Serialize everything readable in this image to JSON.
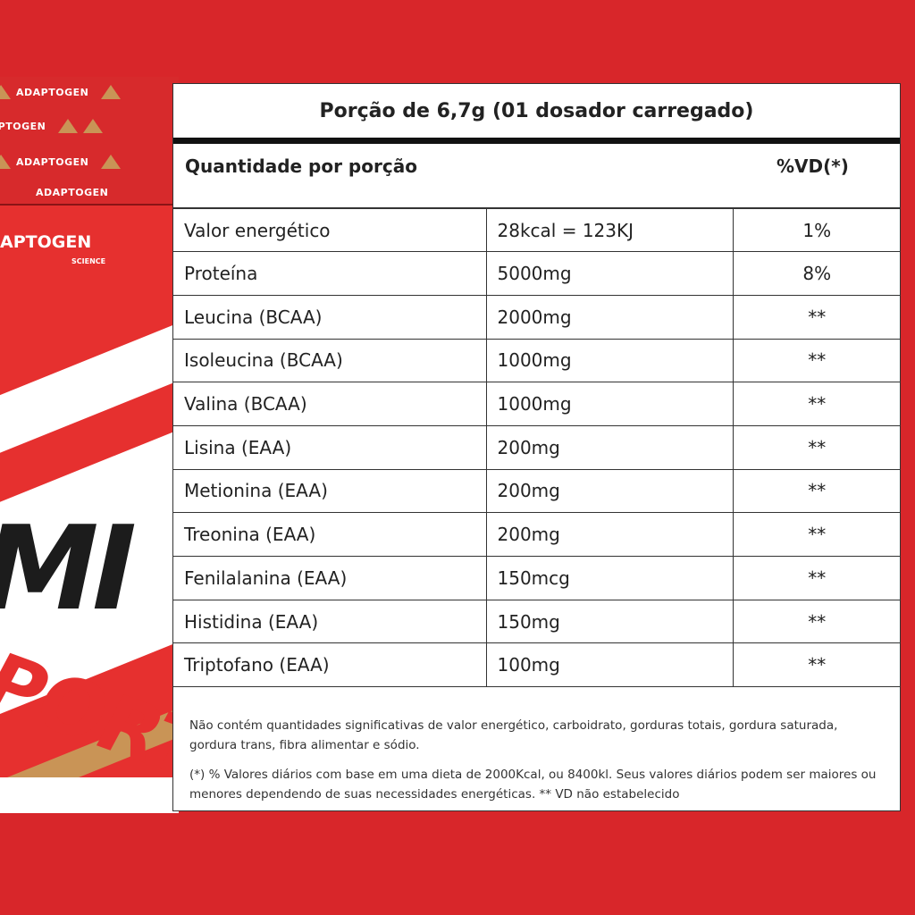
{
  "product": {
    "brand": "APTOGEN",
    "brand_sub": "SCIENCE",
    "lid_logo": "ADAPTOGEN",
    "label_big": "MI",
    "label_sub": "PORT"
  },
  "panel": {
    "portion": "Porção de 6,7g (01 dosador carregado)",
    "qty_header": "Quantidade por porção",
    "vd_header": "%VD(*)",
    "rows": [
      {
        "name": "Valor energético",
        "amount": "28kcal = 123KJ",
        "vd": "1%"
      },
      {
        "name": "Proteína",
        "amount": "5000mg",
        "vd": "8%"
      },
      {
        "name": "Leucina (BCAA)",
        "amount": "2000mg",
        "vd": "**"
      },
      {
        "name": "Isoleucina (BCAA)",
        "amount": "1000mg",
        "vd": "**"
      },
      {
        "name": "Valina (BCAA)",
        "amount": "1000mg",
        "vd": "**"
      },
      {
        "name": "Lisina (EAA)",
        "amount": "200mg",
        "vd": "**"
      },
      {
        "name": "Metionina (EAA)",
        "amount": "200mg",
        "vd": "**"
      },
      {
        "name": "Treonina (EAA)",
        "amount": "200mg",
        "vd": "**"
      },
      {
        "name": "Fenilalanina (EAA)",
        "amount": "150mcg",
        "vd": "**"
      },
      {
        "name": "Histidina (EAA)",
        "amount": "150mg",
        "vd": "**"
      },
      {
        "name": "Triptofano (EAA)",
        "amount": "100mg",
        "vd": "**"
      }
    ],
    "note1": "Não contém quantidades significativas de valor energético, carboidrato, gorduras totais, gordura saturada, gordura trans, fibra alimentar e sódio.",
    "note2": "(*) % Valores diários com base em uma dieta de 2000Kcal, ou 8400kl. Seus valores diários podem ser maiores ou menores dependendo de suas necessidades energéticas. ** VD não estabelecido"
  },
  "colors": {
    "background": "#d8262a",
    "jar_red": "#e6302f",
    "gold": "#c99456"
  }
}
